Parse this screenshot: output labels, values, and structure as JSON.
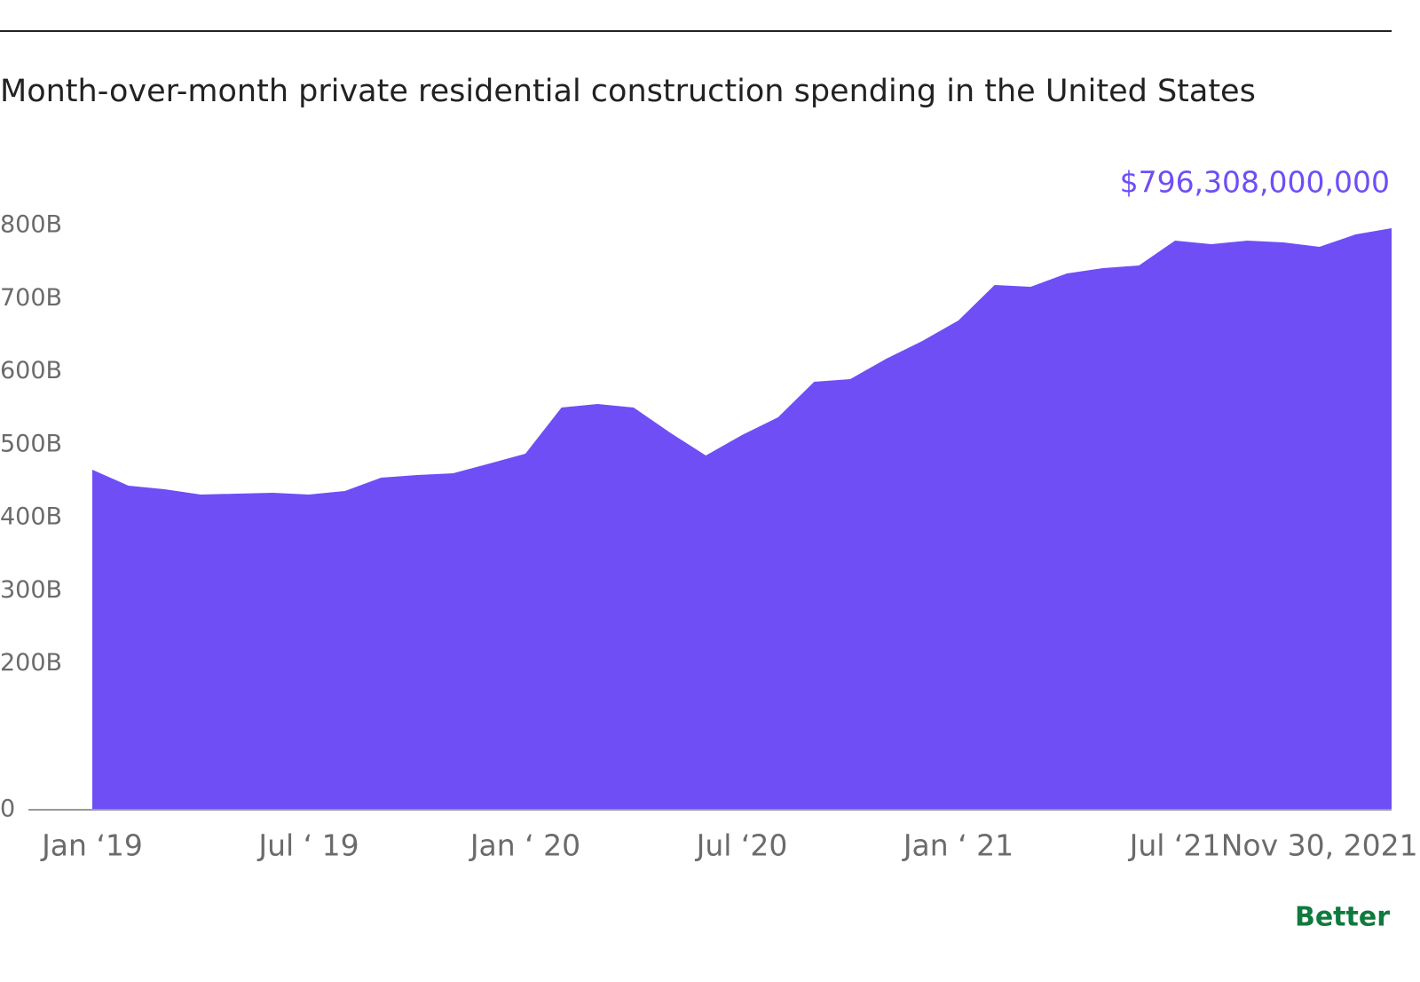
{
  "chart_data": {
    "type": "area",
    "title": "Month-over-month private residential construction spending in the United States",
    "brand": "Better",
    "color": "#6f4ef6",
    "x": [
      "2019-01",
      "2019-02",
      "2019-03",
      "2019-04",
      "2019-05",
      "2019-06",
      "2019-07",
      "2019-08",
      "2019-09",
      "2019-10",
      "2019-11",
      "2019-12",
      "2020-01",
      "2020-02",
      "2020-03",
      "2020-04",
      "2020-05",
      "2020-06",
      "2020-07",
      "2020-08",
      "2020-09",
      "2020-10",
      "2020-11",
      "2020-12",
      "2021-01",
      "2021-02",
      "2021-03",
      "2021-04",
      "2021-05",
      "2021-06",
      "2021-07",
      "2021-08",
      "2021-09",
      "2021-10",
      "2021-11",
      "2021-12",
      "2022-01"
    ],
    "values": [
      465.7,
      443.8,
      438.9,
      431.6,
      432.8,
      434,
      431.6,
      436.5,
      454.7,
      458.4,
      460.8,
      474,
      487.5,
      550.8,
      555.6,
      550.8,
      516.7,
      485.1,
      513,
      537.4,
      586,
      589.7,
      617.6,
      642,
      670,
      718.5,
      716.1,
      734.3,
      741.6,
      745.3,
      779.3,
      774.5,
      779.3,
      776.9,
      770.8,
      787.8,
      796.308
    ],
    "value_labels": [
      null,
      null,
      null,
      null,
      null,
      null,
      null,
      null,
      null,
      null,
      null,
      null,
      null,
      null,
      null,
      null,
      null,
      null,
      null,
      null,
      null,
      null,
      null,
      null,
      null,
      null,
      null,
      null,
      null,
      null,
      null,
      null,
      null,
      null,
      null,
      null,
      "$796,308,000,000"
    ],
    "ylim": [
      0,
      800
    ],
    "yticks": [
      0,
      {
        "value": 200,
        "label": "200B"
      },
      {
        "value": 300,
        "label": "300B"
      },
      {
        "value": 400,
        "label": "400B"
      },
      {
        "value": 500,
        "label": "500B"
      },
      {
        "value": 600,
        "label": "600B"
      },
      {
        "value": 700,
        "label": "700B"
      },
      {
        "value": 800,
        "label": "800B"
      }
    ],
    "xticks": [
      {
        "value": "2019-01",
        "label": "Jan ‘19"
      },
      {
        "value": "2019-07",
        "label": "Jul ‘ 19"
      },
      {
        "value": "2020-01",
        "label": "Jan ‘ 20"
      },
      {
        "value": "2020-07",
        "label": "Jul ‘20"
      },
      {
        "value": "2021-01",
        "label": "Jan ‘ 21"
      },
      {
        "value": "2021-07",
        "label": "Jul ‘21"
      },
      {
        "value": "2021-11",
        "label": "Nov 30, 2021"
      }
    ]
  }
}
